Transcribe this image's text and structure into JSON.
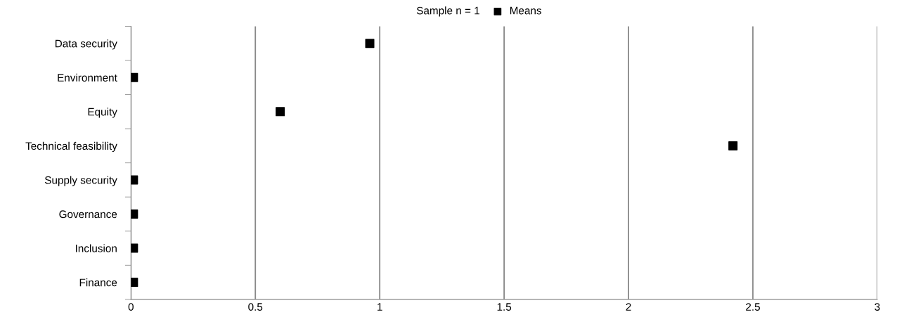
{
  "chart_data": {
    "type": "scatter",
    "title": "Sample n = 1",
    "categories": [
      "Data security",
      "Environment",
      "Equity",
      "Technical feasibility",
      "Supply security",
      "Governance",
      "Inclusion",
      "Finance"
    ],
    "series": [
      {
        "name": "Means",
        "color": "#000000",
        "values": [
          0.96,
          0.01,
          0.6,
          2.42,
          0.01,
          0.01,
          0.01,
          0.01
        ]
      }
    ],
    "orientation": "horizontal",
    "xlim": [
      0,
      3
    ],
    "xticks": [
      0,
      0.5,
      1,
      1.5,
      2,
      2.5,
      3
    ],
    "grid": "x",
    "legend": "top",
    "marker": "square"
  }
}
